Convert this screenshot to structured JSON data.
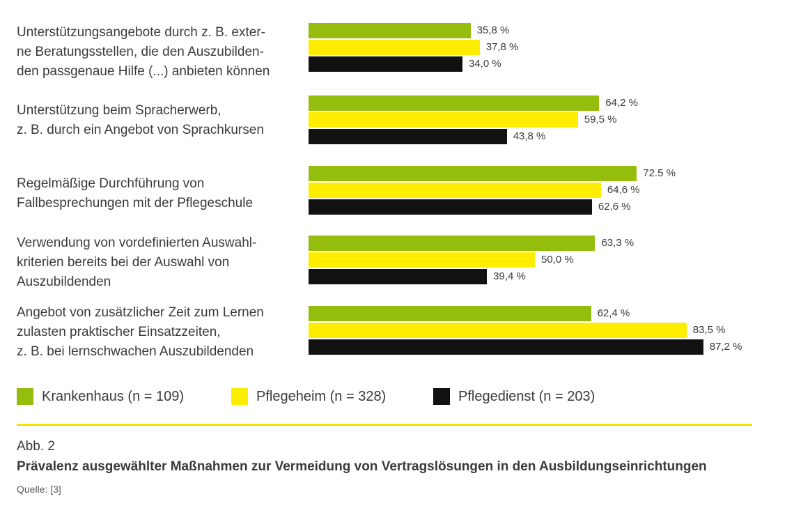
{
  "chart_data": {
    "type": "bar",
    "orientation": "horizontal",
    "categories": [
      "Unterstützungsangebote durch z. B. exter-\nne Beratungsstellen, die den Auszubilden-\nden passgenaue Hilfe (...) anbieten können",
      "Unterstützung beim Spracherwerb,\nz. B. durch ein Angebot von Sprachkursen",
      "Regelmäßige Durchführung von\nFallbesprechungen mit der Pflegeschule",
      "Verwendung von vordefinierten Auswahl-\nkriterien bereits bei der Auswahl von\nAuszubildenden",
      "Angebot von zusätzlicher Zeit zum Lernen\nzulasten praktischer Einsatzzeiten,\nz. B. bei lernschwachen Auszubildenden"
    ],
    "series": [
      {
        "name": "Krankenhaus (n = 109)",
        "color": "#95bd0e",
        "values": [
          35.8,
          64.2,
          72.5,
          63.3,
          62.4
        ],
        "labels": [
          "35,8 %",
          "64,2 %",
          "72.5 %",
          "63,3 %",
          "62,4 %"
        ]
      },
      {
        "name": "Pflegeheim (n = 328)",
        "color": "#ffed00",
        "values": [
          37.8,
          59.5,
          64.6,
          50.0,
          83.5
        ],
        "labels": [
          "37,8 %",
          "59,5 %",
          "64,6 %",
          "50,0 %",
          "83,5 %"
        ]
      },
      {
        "name": "Pflegedienst (n = 203)",
        "color": "#111111",
        "values": [
          34.0,
          43.8,
          62.6,
          39.4,
          87.2
        ],
        "labels": [
          "34,0 %",
          "43,8 %",
          "62,6 %",
          "39,4 %",
          "87,2 %"
        ]
      }
    ],
    "xlim": [
      0,
      100
    ],
    "grid": false,
    "legend_position": "bottom"
  },
  "caption": {
    "figure_number": "Abb. 2",
    "title": "Prävalenz ausgewählter Maßnahmen zur Vermeidung von Vertragslösungen in den Ausbildungseinrichtungen",
    "source": "Quelle: [3]"
  }
}
